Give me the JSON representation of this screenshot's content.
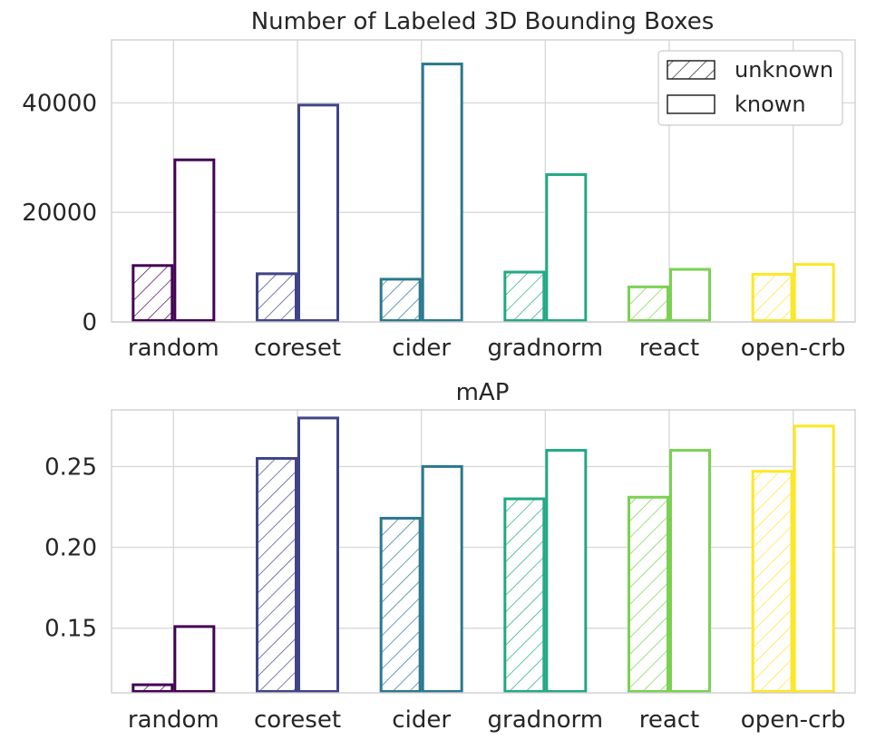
{
  "chart_data": [
    {
      "type": "bar",
      "title": "Number of Labeled 3D Bounding Boxes",
      "categories": [
        "random",
        "coreset",
        "cider",
        "gradnorm",
        "react",
        "open-crb"
      ],
      "category_colors": [
        "#440154",
        "#414487",
        "#2a788e",
        "#22a884",
        "#7ad151",
        "#fde725"
      ],
      "series": [
        {
          "name": "unknown",
          "hatched": true,
          "values": [
            10300,
            8800,
            7800,
            9100,
            6400,
            8700
          ]
        },
        {
          "name": "known",
          "hatched": false,
          "values": [
            29600,
            39600,
            47100,
            26900,
            9600,
            10500
          ]
        }
      ],
      "ylim": [
        0,
        51500
      ],
      "yticks": [
        0,
        20000,
        40000
      ],
      "ytick_labels": [
        "0",
        "20000",
        "40000"
      ],
      "legend": {
        "position": "top-right",
        "entries": [
          "unknown",
          "known"
        ]
      },
      "grid": true
    },
    {
      "type": "bar",
      "title": "mAP",
      "categories": [
        "random",
        "coreset",
        "cider",
        "gradnorm",
        "react",
        "open-crb"
      ],
      "category_colors": [
        "#440154",
        "#414487",
        "#2a788e",
        "#22a884",
        "#7ad151",
        "#fde725"
      ],
      "series": [
        {
          "name": "unknown",
          "hatched": true,
          "values": [
            0.115,
            0.255,
            0.218,
            0.23,
            0.231,
            0.247
          ]
        },
        {
          "name": "known",
          "hatched": false,
          "values": [
            0.151,
            0.28,
            0.25,
            0.26,
            0.26,
            0.275
          ]
        }
      ],
      "ylim": [
        0.11,
        0.285
      ],
      "yticks": [
        0.15,
        0.2,
        0.25
      ],
      "ytick_labels": [
        "0.15",
        "0.20",
        "0.25"
      ],
      "grid": true
    }
  ]
}
